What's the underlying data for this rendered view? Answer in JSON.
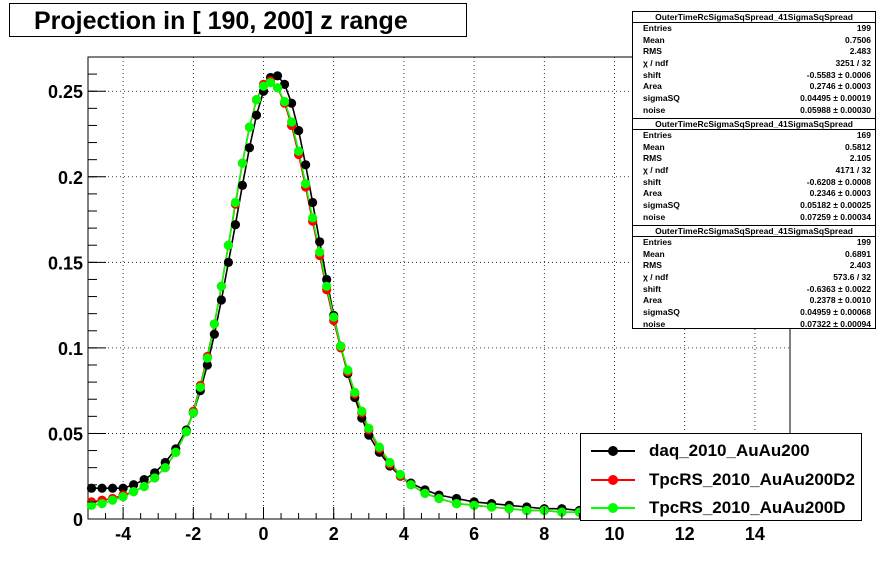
{
  "title": "Projection in [ 190, 200] z range",
  "stats_boxes": [
    {
      "name": "OuterTimeRcSigmaSqSpread_41SigmaSqSpread",
      "rows": [
        {
          "label": "Entries",
          "value": "199"
        },
        {
          "label": "Mean",
          "value": "0.7506"
        },
        {
          "label": "RMS",
          "value": "2.483"
        },
        {
          "label": "χ  / ndf",
          "value": "3251 / 32"
        },
        {
          "label": "shift",
          "value": "-0.5583 ± 0.0006"
        },
        {
          "label": "Area",
          "value": "0.2746 ± 0.0003"
        },
        {
          "label": "sigmaSQ",
          "value": "0.04495 ± 0.00019"
        },
        {
          "label": "noise",
          "value": "0.05988 ± 0.00030"
        }
      ]
    },
    {
      "name": "OuterTimeRcSigmaSqSpread_41SigmaSqSpread",
      "rows": [
        {
          "label": "Entries",
          "value": "169"
        },
        {
          "label": "Mean",
          "value": "0.5812"
        },
        {
          "label": "RMS",
          "value": "2.105"
        },
        {
          "label": "χ  / ndf",
          "value": "4171 / 32"
        },
        {
          "label": "shift",
          "value": "-0.6208 ± 0.0008"
        },
        {
          "label": "Area",
          "value": "0.2346 ± 0.0003"
        },
        {
          "label": "sigmaSQ",
          "value": "0.05182 ± 0.00025"
        },
        {
          "label": "noise",
          "value": "0.07259 ± 0.00034"
        }
      ]
    },
    {
      "name": "OuterTimeRcSigmaSqSpread_41SigmaSqSpread",
      "rows": [
        {
          "label": "Entries",
          "value": "199"
        },
        {
          "label": "Mean",
          "value": "0.6891"
        },
        {
          "label": "RMS",
          "value": "2.403"
        },
        {
          "label": "χ  / ndf",
          "value": "573.6 / 32"
        },
        {
          "label": "shift",
          "value": "-0.6363 ± 0.0022"
        },
        {
          "label": "Area",
          "value": "0.2378 ± 0.0010"
        },
        {
          "label": "sigmaSQ",
          "value": "0.04959 ± 0.00068"
        },
        {
          "label": "noise",
          "value": "0.07322 ± 0.00094"
        }
      ]
    }
  ],
  "legend": [
    {
      "label": "daq_2010_AuAu200",
      "color": "#000000"
    },
    {
      "label": "TpcRS_2010_AuAu200D2",
      "color": "#ff0000"
    },
    {
      "label": "TpcRS_2010_AuAu200D",
      "color": "#00ff00"
    }
  ],
  "chart_data": {
    "type": "scatter",
    "title": "Projection in [ 190, 200] z range",
    "xlabel": "",
    "ylabel": "",
    "xlim": [
      -5,
      15
    ],
    "ylim": [
      0,
      0.27
    ],
    "x_ticks": [
      -4,
      -2,
      0,
      2,
      4,
      6,
      8,
      10,
      12,
      14
    ],
    "y_ticks": [
      0,
      0.05,
      0.1,
      0.15,
      0.2,
      0.25
    ],
    "y_tick_labels": [
      "0",
      "0.05",
      "0.1",
      "0.15",
      "0.2",
      "0.25"
    ],
    "grid": true,
    "legend_position": "bottom-right",
    "series": [
      {
        "name": "daq_2010_AuAu200",
        "color": "#000000",
        "x": [
          -4.9,
          -4.6,
          -4.3,
          -4.0,
          -3.7,
          -3.4,
          -3.1,
          -2.8,
          -2.5,
          -2.2,
          -2.0,
          -1.8,
          -1.6,
          -1.4,
          -1.2,
          -1.0,
          -0.8,
          -0.6,
          -0.4,
          -0.2,
          0.0,
          0.2,
          0.4,
          0.6,
          0.8,
          1.0,
          1.2,
          1.4,
          1.6,
          1.8,
          2.0,
          2.2,
          2.4,
          2.6,
          2.8,
          3.0,
          3.3,
          3.6,
          3.9,
          4.2,
          4.6,
          5.0,
          5.5,
          6.0,
          6.5,
          7.0,
          7.5,
          8.0,
          8.5,
          9.0
        ],
        "y": [
          0.018,
          0.018,
          0.018,
          0.018,
          0.02,
          0.023,
          0.027,
          0.033,
          0.041,
          0.052,
          0.062,
          0.075,
          0.09,
          0.108,
          0.128,
          0.15,
          0.172,
          0.195,
          0.217,
          0.236,
          0.25,
          0.258,
          0.259,
          0.254,
          0.243,
          0.227,
          0.207,
          0.185,
          0.162,
          0.14,
          0.119,
          0.101,
          0.085,
          0.071,
          0.059,
          0.049,
          0.039,
          0.031,
          0.025,
          0.021,
          0.017,
          0.014,
          0.012,
          0.01,
          0.009,
          0.008,
          0.007,
          0.006,
          0.006,
          0.005
        ]
      },
      {
        "name": "TpcRS_2010_AuAu200D2",
        "color": "#ff0000",
        "x": [
          -4.9,
          -4.6,
          -4.3,
          -4.0,
          -3.7,
          -3.4,
          -3.1,
          -2.8,
          -2.5,
          -2.2,
          -2.0,
          -1.8,
          -1.6,
          -1.4,
          -1.2,
          -1.0,
          -0.8,
          -0.6,
          -0.4,
          -0.2,
          0.0,
          0.2,
          0.4,
          0.6,
          0.8,
          1.0,
          1.2,
          1.4,
          1.6,
          1.8,
          2.0,
          2.2,
          2.4,
          2.6,
          2.8,
          3.0,
          3.3,
          3.6,
          3.9,
          4.2,
          4.6,
          5.0,
          5.5,
          6.0,
          6.5,
          7.0,
          7.5,
          8.0,
          8.5,
          9.0
        ],
        "y": [
          0.01,
          0.011,
          0.012,
          0.014,
          0.016,
          0.019,
          0.024,
          0.03,
          0.039,
          0.051,
          0.063,
          0.078,
          0.095,
          0.114,
          0.136,
          0.16,
          0.184,
          0.208,
          0.229,
          0.245,
          0.254,
          0.256,
          0.252,
          0.243,
          0.23,
          0.213,
          0.194,
          0.174,
          0.154,
          0.134,
          0.116,
          0.1,
          0.086,
          0.073,
          0.062,
          0.052,
          0.041,
          0.032,
          0.025,
          0.02,
          0.015,
          0.012,
          0.009,
          0.008,
          0.007,
          0.006,
          0.005,
          0.005,
          0.004,
          0.004
        ]
      },
      {
        "name": "TpcRS_2010_AuAu200D",
        "color": "#00ff00",
        "x": [
          -4.9,
          -4.6,
          -4.3,
          -4.0,
          -3.7,
          -3.4,
          -3.1,
          -2.8,
          -2.5,
          -2.2,
          -2.0,
          -1.8,
          -1.6,
          -1.4,
          -1.2,
          -1.0,
          -0.8,
          -0.6,
          -0.4,
          -0.2,
          0.0,
          0.2,
          0.4,
          0.6,
          0.8,
          1.0,
          1.2,
          1.4,
          1.6,
          1.8,
          2.0,
          2.2,
          2.4,
          2.6,
          2.8,
          3.0,
          3.3,
          3.6,
          3.9,
          4.2,
          4.6,
          5.0,
          5.5,
          6.0,
          6.5,
          7.0,
          7.5,
          8.0,
          8.5,
          9.0
        ],
        "y": [
          0.008,
          0.009,
          0.011,
          0.013,
          0.016,
          0.019,
          0.024,
          0.03,
          0.039,
          0.051,
          0.062,
          0.077,
          0.094,
          0.114,
          0.136,
          0.16,
          0.185,
          0.208,
          0.229,
          0.245,
          0.253,
          0.255,
          0.252,
          0.244,
          0.232,
          0.215,
          0.196,
          0.176,
          0.156,
          0.136,
          0.118,
          0.101,
          0.087,
          0.074,
          0.063,
          0.053,
          0.042,
          0.033,
          0.026,
          0.02,
          0.015,
          0.012,
          0.009,
          0.008,
          0.007,
          0.006,
          0.005,
          0.005,
          0.004,
          0.004
        ]
      }
    ]
  }
}
